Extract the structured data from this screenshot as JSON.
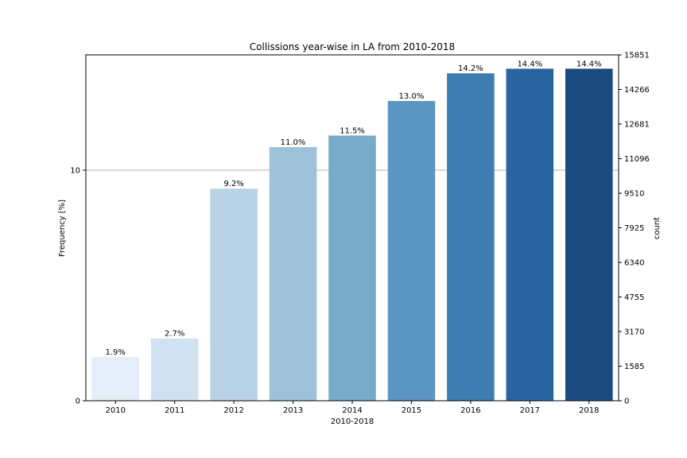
{
  "chart_data": {
    "type": "bar",
    "title": "Collissions year-wise in LA from 2010-2018",
    "xlabel": "2010-2018",
    "ylabel": "Frequency [%]",
    "ylabel_right": "count",
    "categories": [
      "2010",
      "2011",
      "2012",
      "2013",
      "2014",
      "2015",
      "2016",
      "2017",
      "2018"
    ],
    "values": [
      1.9,
      2.7,
      9.2,
      11.0,
      11.5,
      13.0,
      14.2,
      14.4,
      14.4
    ],
    "value_labels": [
      "1.9%",
      "2.7%",
      "9.2%",
      "11.0%",
      "11.5%",
      "13.0%",
      "14.2%",
      "14.4%",
      "14.4%"
    ],
    "ylim": [
      0,
      15
    ],
    "yticks": [
      "0",
      "10"
    ],
    "ylim_right": [
      0,
      15851
    ],
    "yticks_right": [
      "0",
      "1585",
      "3170",
      "4755",
      "6340",
      "7925",
      "9510",
      "11096",
      "12681",
      "14266",
      "15851"
    ],
    "colors": [
      "#e3eef8",
      "#d0e1f2",
      "#b9d3e6",
      "#9dc2d9",
      "#78aac9",
      "#5a96c1",
      "#3e7db1",
      "#2a64a0",
      "#1b4a7f"
    ],
    "grid": "horizontal line at 10",
    "grid_color": "#b0b0b0"
  }
}
